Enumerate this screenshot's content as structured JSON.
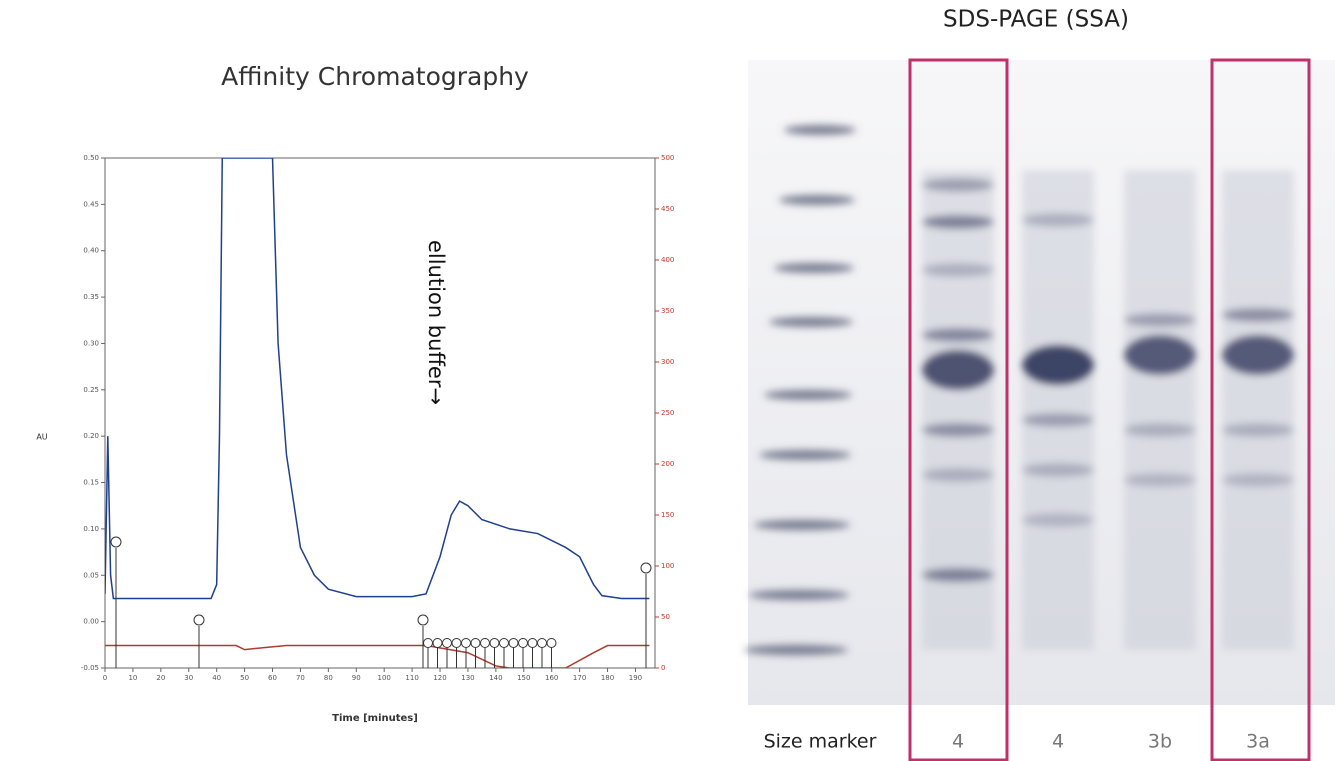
{
  "chart_data": {
    "type": "line",
    "title": "Affinity Chromatography",
    "x_label": "Time [minutes]",
    "y_label": "AU",
    "annotation": "ellution  buffer→",
    "xlim": [
      0,
      197
    ],
    "xticks": [
      0,
      10,
      20,
      30,
      40,
      50,
      60,
      70,
      80,
      90,
      100,
      110,
      120,
      130,
      140,
      150,
      160,
      170,
      180,
      190
    ],
    "ylim": [
      -0.05,
      0.5
    ],
    "yticks": [
      {
        "value": -0.05,
        "label": "-0.05"
      },
      {
        "value": 0,
        "label": "0.00"
      },
      {
        "value": 0.05,
        "label": "0.05"
      },
      {
        "value": 0.1,
        "label": "0.10"
      },
      {
        "value": 0.15,
        "label": "0.15"
      },
      {
        "value": 0.2,
        "label": "0.20"
      },
      {
        "value": 0.25,
        "label": "0.25"
      },
      {
        "value": 0.3,
        "label": "0.30"
      },
      {
        "value": 0.35,
        "label": "0.35"
      },
      {
        "value": 0.4,
        "label": "0.40"
      },
      {
        "value": 0.45,
        "label": "0.45"
      },
      {
        "value": 0.5,
        "label": "0.50"
      }
    ],
    "y2lim": [
      0,
      500
    ],
    "y2ticks": [
      0,
      50,
      100,
      150,
      200,
      250,
      300,
      350,
      400,
      450,
      500
    ],
    "series": [
      {
        "color": "#1f3f8f",
        "x": [
          0,
          1,
          2,
          3,
          38,
          40,
          41,
          42,
          60,
          62,
          65,
          70,
          75,
          80,
          90,
          110,
          115,
          120,
          124,
          127,
          130,
          135,
          145,
          155,
          165,
          170,
          175,
          178,
          185,
          195
        ],
        "values": [
          0.03,
          0.2,
          0.05,
          0.025,
          0.025,
          0.04,
          0.2,
          0.5,
          0.5,
          0.3,
          0.18,
          0.08,
          0.05,
          0.035,
          0.027,
          0.027,
          0.03,
          0.07,
          0.115,
          0.13,
          0.125,
          0.11,
          0.1,
          0.095,
          0.08,
          0.07,
          0.04,
          0.028,
          0.025,
          0.025
        ]
      },
      {
        "color": "#b03a2e",
        "axis": "y2",
        "x": [
          0,
          47,
          50,
          57,
          65,
          115,
          130,
          140,
          145,
          165,
          175,
          180,
          195
        ],
        "values": [
          22,
          22,
          18,
          20,
          22,
          22,
          15,
          2,
          0,
          0,
          15,
          22,
          22
        ]
      }
    ]
  },
  "gel": {
    "title": "SDS-PAGE (SSA)",
    "lanes": [
      "Size marker",
      "4",
      "4",
      "3b",
      "3a"
    ]
  }
}
